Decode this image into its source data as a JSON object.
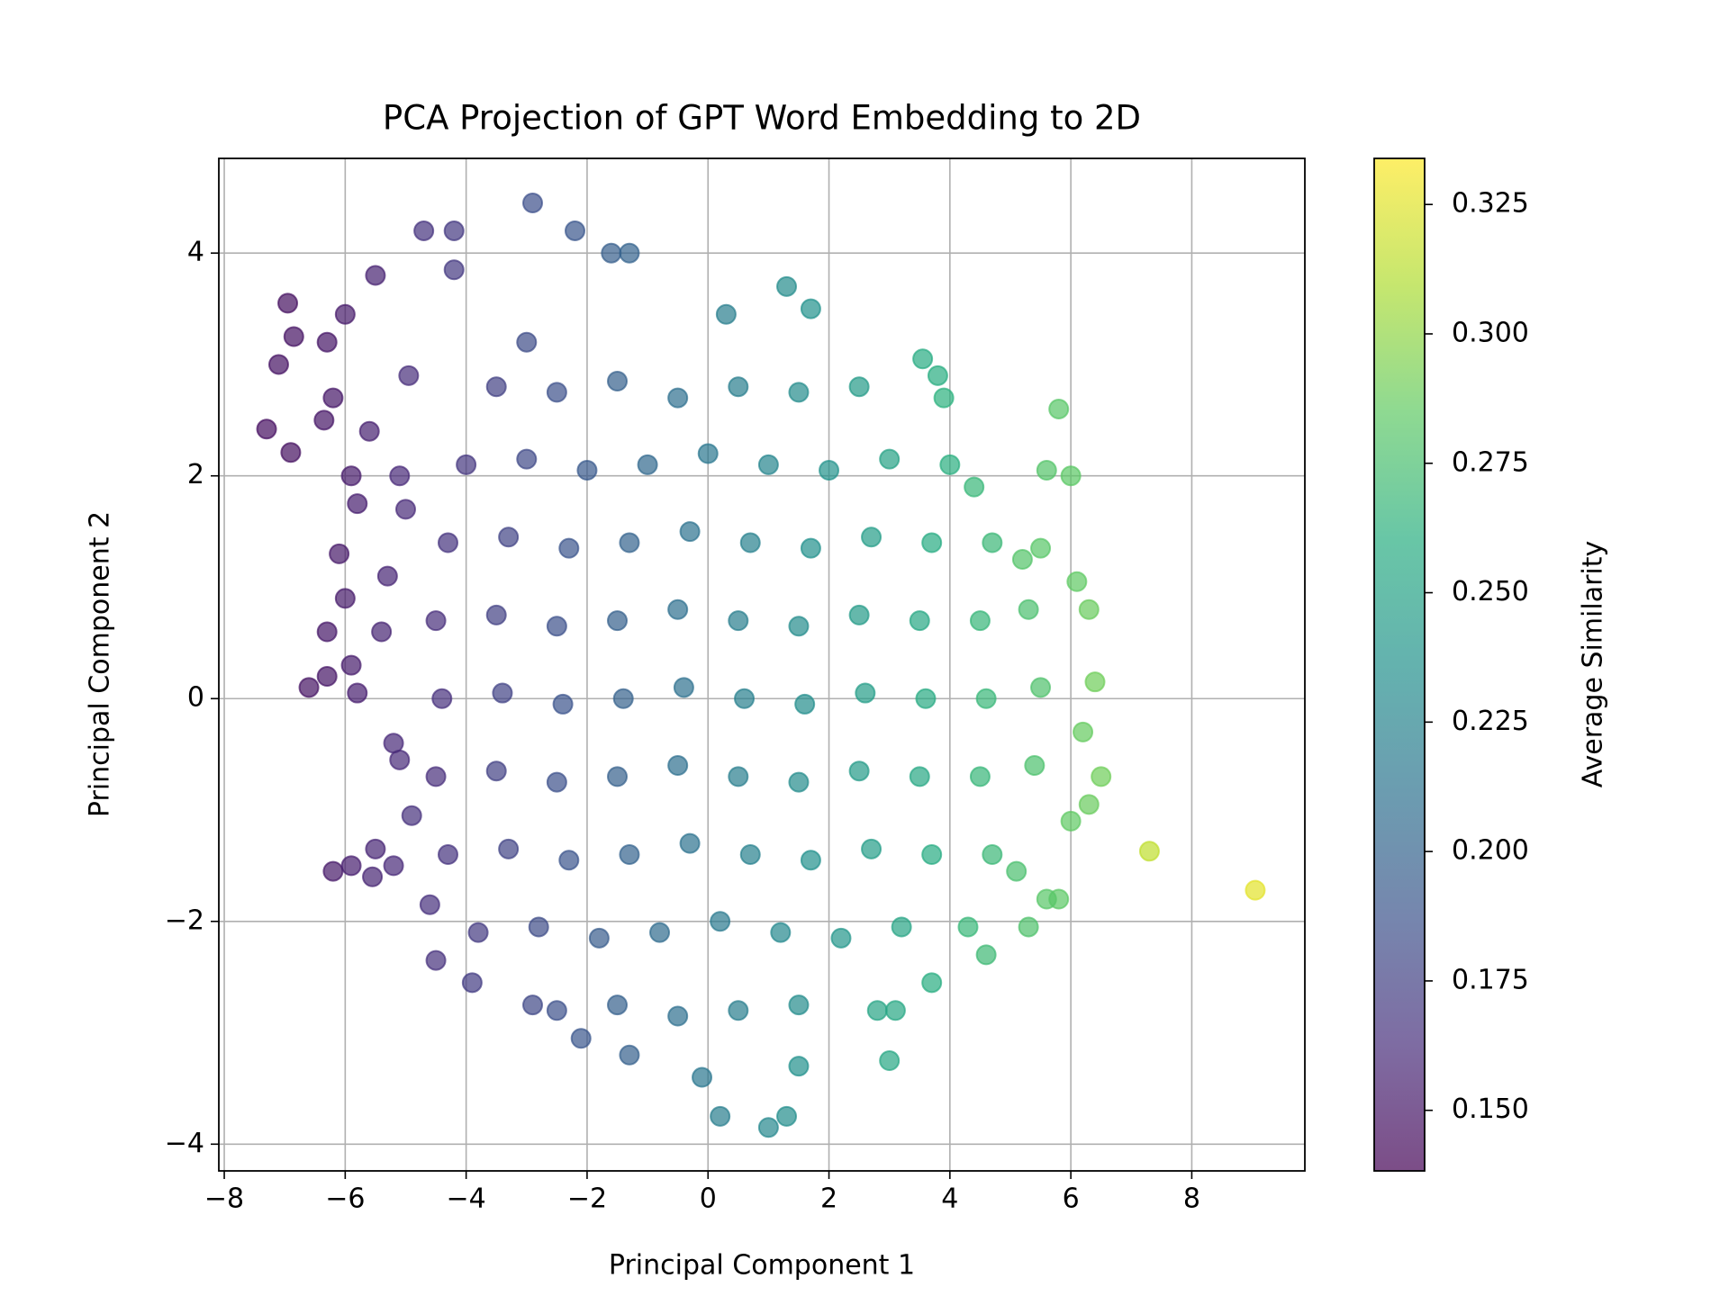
{
  "chart_data": {
    "type": "scatter",
    "title": "PCA Projection of GPT Word Embedding to 2D",
    "xlabel": "Principal Component 1",
    "ylabel": "Principal Component 2",
    "colorbar_label": "Average Similarity",
    "colormap": "viridis",
    "alpha": 0.7,
    "grid": true,
    "xlim": [
      -8.09,
      9.87
    ],
    "ylim": [
      -4.24,
      4.85
    ],
    "clim": [
      0.1383,
      0.3339
    ],
    "xticks": [
      {
        "value": -8,
        "label": "−8"
      },
      {
        "value": -6,
        "label": "−6"
      },
      {
        "value": -4,
        "label": "−4"
      },
      {
        "value": -2,
        "label": "−2"
      },
      0,
      2,
      4,
      6,
      8
    ],
    "yticks": [
      {
        "value": -4,
        "label": "−4"
      },
      {
        "value": -2,
        "label": "−2"
      },
      0,
      2,
      4
    ],
    "cticks": [
      {
        "value": 0.15,
        "label": "0.150"
      },
      0.175,
      {
        "value": 0.2,
        "label": "0.200"
      },
      0.225,
      {
        "value": 0.25,
        "label": "0.250"
      },
      0.275,
      {
        "value": 0.3,
        "label": "0.300"
      },
      0.325
    ],
    "x": [
      9.05,
      7.3,
      -7.3,
      -6.9,
      -7.1,
      -6.95,
      -6.85,
      -6.3,
      -6.0,
      -6.2,
      -6.35,
      -5.5,
      -5.9,
      -6.1,
      -6.0,
      -6.3,
      -6.6,
      -6.3,
      -5.8,
      -5.9,
      -5.3,
      -5.4,
      -5.2,
      -5.1,
      -5.5,
      -5.2,
      -6.2,
      -5.9,
      -5.55,
      -4.9,
      -5.8,
      -5.6,
      -5.1,
      -5.0,
      -4.95,
      -4.7,
      -4.2,
      -2.9,
      -2.2,
      -1.6,
      -1.3,
      1.3,
      1.7,
      0.3,
      5.8,
      6.0,
      5.6,
      6.1,
      6.3,
      6.4,
      6.2,
      6.5,
      6.3,
      6.0,
      5.8,
      5.3,
      5.6,
      4.6,
      3.7,
      3.1,
      2.8,
      3.0,
      1.3,
      1.0,
      0.2,
      1.5,
      -0.1,
      -2.1,
      -1.3,
      -2.9,
      -3.9,
      -4.5,
      -4.6,
      -4.2,
      -3.0,
      4.4,
      5.2,
      5.5,
      5.1,
      4.3,
      3.55,
      3.8,
      3.9,
      -3.5,
      -2.5,
      -1.5,
      -0.5,
      0.5,
      1.5,
      2.5,
      -4,
      -3,
      -2,
      -1,
      0,
      1,
      2,
      3,
      4,
      -4.3,
      -3.3,
      -2.3,
      -1.3,
      -0.3,
      0.7,
      1.7,
      2.7,
      3.7,
      4.7,
      -4.5,
      -3.5,
      -2.5,
      -1.5,
      -0.5,
      0.5,
      1.5,
      2.5,
      3.5,
      4.5,
      5.3,
      -4.4,
      -3.4,
      -2.4,
      -1.4,
      -0.4,
      0.6,
      1.6,
      2.6,
      3.6,
      4.6,
      5.5,
      -4.5,
      -3.5,
      -2.5,
      -1.5,
      -0.5,
      0.5,
      1.5,
      2.5,
      3.5,
      4.5,
      5.4,
      -4.3,
      -3.3,
      -2.3,
      -1.3,
      -0.3,
      0.7,
      1.7,
      2.7,
      3.7,
      4.7,
      -3.8,
      -2.8,
      -1.8,
      -0.8,
      0.2,
      1.2,
      2.2,
      3.2,
      -2.5,
      -1.5,
      -0.5,
      0.5,
      1.5
    ],
    "y": [
      -1.72,
      -1.37,
      2.42,
      2.21,
      3.0,
      3.55,
      3.25,
      3.2,
      3.45,
      2.7,
      2.5,
      3.8,
      2.0,
      1.3,
      0.9,
      0.6,
      0.1,
      0.2,
      0.05,
      0.3,
      1.1,
      0.6,
      -0.4,
      -0.55,
      -1.35,
      -1.5,
      -1.55,
      -1.5,
      -1.6,
      -1.05,
      1.75,
      2.4,
      2.0,
      1.7,
      2.9,
      4.2,
      4.2,
      4.45,
      4.2,
      4.0,
      4.0,
      3.7,
      3.5,
      3.45,
      2.6,
      2.0,
      2.05,
      1.05,
      0.8,
      0.15,
      -0.3,
      -0.7,
      -0.95,
      -1.1,
      -1.8,
      -2.05,
      -1.8,
      -2.3,
      -2.55,
      -2.8,
      -2.8,
      -3.25,
      -3.75,
      -3.85,
      -3.75,
      -3.3,
      -3.4,
      -3.05,
      -3.2,
      -2.75,
      -2.55,
      -2.35,
      -1.85,
      3.85,
      3.2,
      1.9,
      1.25,
      1.35,
      -1.55,
      -2.05,
      3.05,
      2.9,
      2.7,
      2.8,
      2.75,
      2.85,
      2.7,
      2.8,
      2.75,
      2.8,
      2.1,
      2.15,
      2.05,
      2.1,
      2.2,
      2.1,
      2.05,
      2.15,
      2.1,
      1.4,
      1.45,
      1.35,
      1.4,
      1.5,
      1.4,
      1.35,
      1.45,
      1.4,
      1.4,
      0.7,
      0.75,
      0.65,
      0.7,
      0.8,
      0.7,
      0.65,
      0.75,
      0.7,
      0.7,
      0.8,
      0,
      0.05,
      -0.05,
      0,
      0.1,
      0,
      -0.05,
      0.05,
      0,
      0,
      0.1,
      -0.7,
      -0.65,
      -0.75,
      -0.7,
      -0.6,
      -0.7,
      -0.75,
      -0.65,
      -0.7,
      -0.7,
      -0.6,
      -1.4,
      -1.35,
      -1.45,
      -1.4,
      -1.3,
      -1.4,
      -1.45,
      -1.35,
      -1.4,
      -1.4,
      -2.1,
      -2.05,
      -2.15,
      -2.1,
      -2.0,
      -2.1,
      -2.15,
      -2.05,
      -2.8,
      -2.75,
      -2.85,
      -2.8,
      -2.75
    ],
    "c": [
      0.326,
      0.315,
      0.145,
      0.146,
      0.147,
      0.146,
      0.147,
      0.149,
      0.152,
      0.15,
      0.149,
      0.156,
      0.152,
      0.151,
      0.152,
      0.15,
      0.148,
      0.149,
      0.154,
      0.153,
      0.158,
      0.157,
      0.16,
      0.161,
      0.158,
      0.16,
      0.151,
      0.154,
      0.157,
      0.165,
      0.154,
      0.155,
      0.16,
      0.161,
      0.163,
      0.166,
      0.17,
      0.185,
      0.19,
      0.196,
      0.2,
      0.232,
      0.236,
      0.22,
      0.282,
      0.283,
      0.28,
      0.285,
      0.288,
      0.29,
      0.287,
      0.29,
      0.288,
      0.285,
      0.283,
      0.278,
      0.282,
      0.27,
      0.26,
      0.255,
      0.252,
      0.254,
      0.233,
      0.228,
      0.22,
      0.235,
      0.215,
      0.19,
      0.198,
      0.18,
      0.172,
      0.165,
      0.164,
      0.17,
      0.183,
      0.268,
      0.28,
      0.282,
      0.276,
      0.268,
      0.258,
      0.26,
      0.262,
      0.175,
      0.186,
      0.198,
      0.209,
      0.221,
      0.232,
      0.244,
      0.169,
      0.181,
      0.192,
      0.204,
      0.215,
      0.227,
      0.238,
      0.25,
      0.261,
      0.166,
      0.177,
      0.189,
      0.2,
      0.212,
      0.223,
      0.235,
      0.246,
      0.258,
      0.269,
      0.163,
      0.175,
      0.186,
      0.198,
      0.209,
      0.221,
      0.232,
      0.244,
      0.255,
      0.267,
      0.276,
      0.164,
      0.176,
      0.187,
      0.199,
      0.21,
      0.222,
      0.233,
      0.245,
      0.256,
      0.268,
      0.278,
      0.163,
      0.175,
      0.186,
      0.198,
      0.209,
      0.221,
      0.232,
      0.244,
      0.255,
      0.267,
      0.277,
      0.166,
      0.177,
      0.189,
      0.2,
      0.212,
      0.223,
      0.235,
      0.246,
      0.258,
      0.269,
      0.171,
      0.183,
      0.194,
      0.206,
      0.217,
      0.229,
      0.24,
      0.252,
      0.186,
      0.198,
      0.209,
      0.221,
      0.232
    ]
  }
}
